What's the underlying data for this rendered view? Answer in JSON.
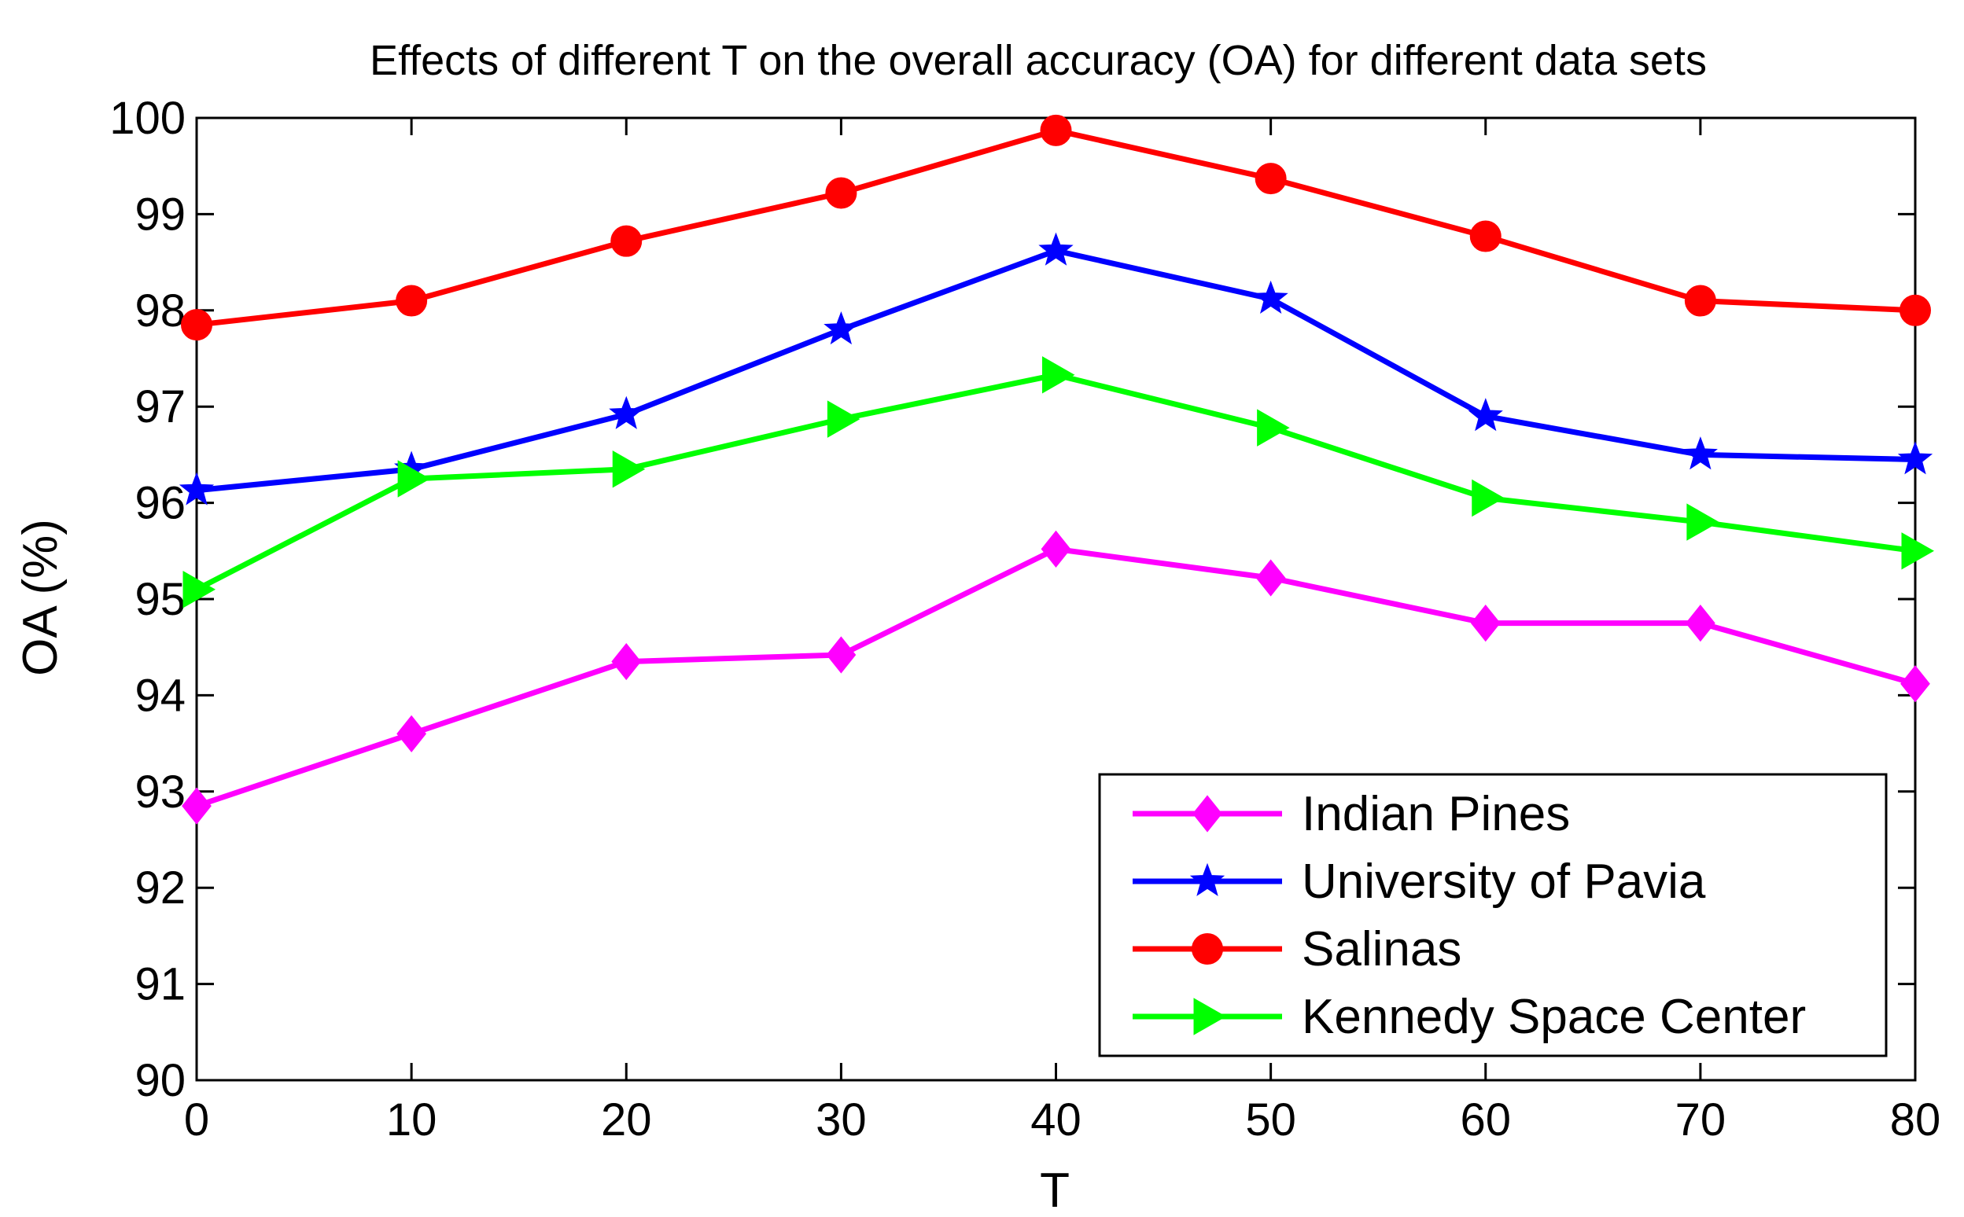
{
  "chart_data": {
    "type": "line",
    "title": "Effects of different T on the overall accuracy (OA) for different data sets",
    "xlabel": "T",
    "ylabel": "OA (%)",
    "x": [
      0,
      10,
      20,
      30,
      40,
      50,
      60,
      70,
      80
    ],
    "xlim": [
      0,
      80
    ],
    "ylim": [
      90,
      100
    ],
    "xticks": [
      "0",
      "10",
      "20",
      "30",
      "40",
      "50",
      "60",
      "70",
      "80"
    ],
    "yticks": [
      "90",
      "91",
      "92",
      "93",
      "94",
      "95",
      "96",
      "97",
      "98",
      "99",
      "100"
    ],
    "grid": false,
    "legend_position": "bottom-right",
    "series": [
      {
        "name": "Indian Pines",
        "color": "#ff00ff",
        "marker": "diamond",
        "values": [
          92.85,
          93.6,
          94.35,
          94.42,
          95.52,
          95.22,
          94.75,
          94.75,
          94.12
        ]
      },
      {
        "name": "University of Pavia",
        "color": "#0000ff",
        "marker": "star",
        "values": [
          96.13,
          96.35,
          96.92,
          97.8,
          98.62,
          98.12,
          96.9,
          96.5,
          96.45
        ]
      },
      {
        "name": "Salinas",
        "color": "#ff0000",
        "marker": "circle",
        "values": [
          97.85,
          98.1,
          98.72,
          99.22,
          99.87,
          99.37,
          98.77,
          98.1,
          98.0
        ]
      },
      {
        "name": "Kennedy Space Center",
        "color": "#00ff00",
        "marker": "triangle-right",
        "values": [
          95.1,
          96.25,
          96.35,
          96.87,
          97.33,
          96.78,
          96.05,
          95.8,
          95.5
        ]
      }
    ]
  }
}
